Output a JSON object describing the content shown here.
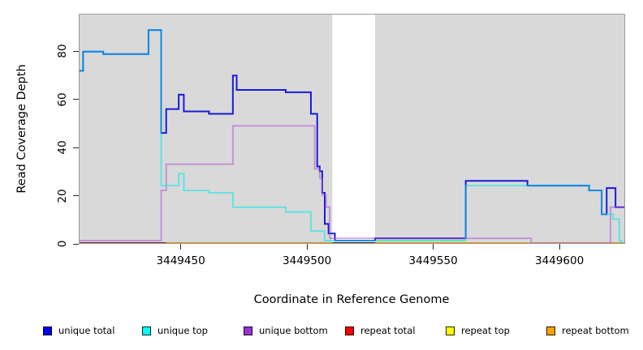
{
  "chart_data": {
    "type": "line",
    "subtype": "step-coverage-plot",
    "title": "",
    "xlabel": "Coordinate in Reference Genome",
    "ylabel": "Read Coverage Depth",
    "xlim": [
      3449409.6,
      3449626
    ],
    "ylim": [
      0,
      95.5
    ],
    "x_ticks": [
      3449450,
      3449500,
      3449550,
      3449600
    ],
    "y_ticks": [
      0,
      20,
      40,
      60,
      80
    ],
    "grid": "off",
    "plot_background": "#D9D9D9",
    "gap_region": {
      "x_start": 3449510,
      "x_end": 3449527,
      "color": "#FFFFFF"
    },
    "legend_position": "bottom",
    "series": [
      {
        "name": "repeat total",
        "legend_color": "#FF0000",
        "stroke": "#E8112D",
        "opacity": 0.5,
        "width": 1.6,
        "segments": [
          {
            "points": [
              [
                3449409.6,
                0
              ]
            ],
            "end": 3449510
          },
          {
            "points": [
              [
                3449527,
                0
              ]
            ],
            "end": 3449626
          }
        ]
      },
      {
        "name": "repeat top",
        "legend_color": "#FFFF00",
        "stroke": "#F2F20D",
        "opacity": 0.8,
        "width": 1.6,
        "segments": [
          {
            "points": [
              [
                3449527,
                1
              ],
              [
                3449563,
                0
              ]
            ],
            "end": 3449626
          }
        ]
      },
      {
        "name": "repeat bottom",
        "legend_color": "#FFA300",
        "stroke": "#FF9E00",
        "opacity": 1,
        "width": 1.8,
        "segments": [
          {
            "points": [
              [
                3449444,
                0
              ]
            ],
            "end": 3449510
          },
          {
            "points": [
              [
                3449527,
                0
              ]
            ],
            "end": 3449624
          }
        ]
      },
      {
        "name": "unique total",
        "legend_color": "#0000EE",
        "stroke": "#1A1AD9",
        "opacity": 1,
        "width": 2,
        "segments": [
          {
            "points": [
              [
                3449409.6,
                72
              ],
              [
                3449411,
                80
              ],
              [
                3449419,
                79
              ],
              [
                3449437,
                89
              ],
              [
                3449442,
                46
              ],
              [
                3449444,
                56
              ],
              [
                3449449,
                62
              ],
              [
                3449451,
                55
              ],
              [
                3449461,
                54
              ],
              [
                3449470.5,
                70
              ],
              [
                3449472,
                64
              ],
              [
                3449491.5,
                63
              ],
              [
                3449501.5,
                54
              ],
              [
                3449504,
                32
              ],
              [
                3449505,
                30
              ],
              [
                3449506,
                21
              ],
              [
                3449507,
                8
              ],
              [
                3449508.5,
                4
              ],
              [
                3449511,
                1
              ],
              [
                3449527,
                2
              ],
              [
                3449563,
                26
              ],
              [
                3449587.5,
                24
              ],
              [
                3449612,
                22
              ],
              [
                3449617,
                12
              ],
              [
                3449619,
                23
              ],
              [
                3449622.5,
                15
              ]
            ],
            "end": 3449626
          }
        ]
      },
      {
        "name": "unique bottom",
        "legend_color": "#9A32CD",
        "stroke": "#A94FD3",
        "opacity": 0.5,
        "width": 2,
        "segments": [
          {
            "points": [
              [
                3449409.6,
                1
              ],
              [
                3449442,
                22
              ],
              [
                3449444,
                33
              ],
              [
                3449470.5,
                49
              ],
              [
                3449503,
                31
              ],
              [
                3449505,
                27
              ],
              [
                3449506,
                20
              ],
              [
                3449507.5,
                15
              ],
              [
                3449509,
                2
              ],
              [
                3449589,
                0
              ],
              [
                3449620.5,
                15
              ]
            ],
            "end": 3449626
          }
        ]
      },
      {
        "name": "unique top",
        "legend_color": "#00FFFF",
        "stroke": "#00EBEB",
        "opacity": 0.55,
        "width": 2,
        "segments": [
          {
            "points": [
              [
                3449409.6,
                72
              ],
              [
                3449411,
                80
              ],
              [
                3449419,
                79
              ],
              [
                3449437,
                89
              ],
              [
                3449442,
                24
              ],
              [
                3449449,
                29
              ],
              [
                3449451,
                22
              ],
              [
                3449461,
                21
              ],
              [
                3449470.5,
                15
              ],
              [
                3449491.5,
                13
              ],
              [
                3449501.5,
                5
              ],
              [
                3449507,
                1
              ],
              [
                3449563,
                24
              ],
              [
                3449612,
                22
              ],
              [
                3449617,
                12
              ],
              [
                3449621.5,
                10
              ],
              [
                3449624,
                1
              ],
              [
                3449625,
                0
              ]
            ],
            "end": 3449626
          }
        ]
      }
    ],
    "legend": [
      {
        "label": "unique total",
        "color": "#0000EE"
      },
      {
        "label": "unique top",
        "color": "#00FFFF"
      },
      {
        "label": "unique bottom",
        "color": "#9A32CD"
      },
      {
        "label": "repeat total",
        "color": "#FF0000"
      },
      {
        "label": "repeat top",
        "color": "#FFFF00"
      },
      {
        "label": "repeat bottom",
        "color": "#FFA300"
      }
    ]
  }
}
